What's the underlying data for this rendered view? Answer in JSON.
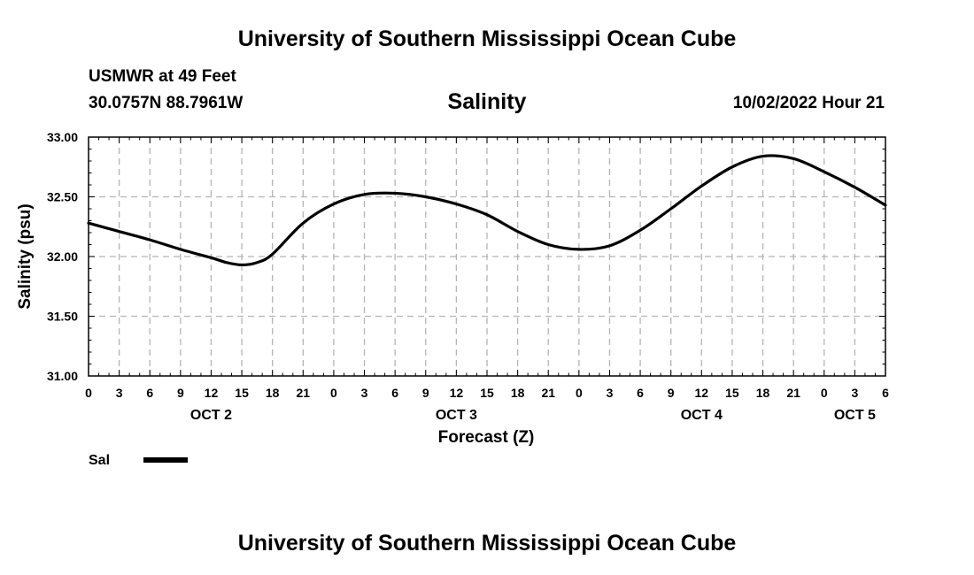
{
  "header": {
    "title": "University of Southern Mississippi Ocean Cube",
    "station": "USMWR at 49 Feet",
    "coords": "30.0757N  88.7961W",
    "datetime": "10/02/2022 Hour 21"
  },
  "footer": {
    "title": "University of Southern Mississippi Ocean Cube"
  },
  "chart_data": {
    "type": "line",
    "title": "Salinity",
    "xlabel": "Forecast (Z)",
    "ylabel": "Salinity (psu)",
    "ylim": [
      31.0,
      33.0
    ],
    "yticks": [
      "31.00",
      "31.50",
      "32.00",
      "32.50",
      "33.00"
    ],
    "xlim_hours": [
      0,
      78
    ],
    "xtick_labels": [
      "0",
      "3",
      "6",
      "9",
      "12",
      "15",
      "18",
      "21",
      "0",
      "3",
      "6",
      "9",
      "12",
      "15",
      "18",
      "21",
      "0",
      "3",
      "6",
      "9",
      "12",
      "15",
      "18",
      "21",
      "0",
      "3",
      "6"
    ],
    "day_labels": [
      {
        "label": "OCT 2",
        "hour": 12
      },
      {
        "label": "OCT 3",
        "hour": 36
      },
      {
        "label": "OCT 4",
        "hour": 60
      },
      {
        "label": "OCT 5",
        "hour": 75
      }
    ],
    "grid": true,
    "legend": "bottom-left",
    "series": [
      {
        "name": "Sal",
        "color": "#000000",
        "x": [
          0,
          3,
          6,
          9,
          12,
          13.5,
          15,
          16.5,
          18,
          21,
          24,
          27,
          30,
          33,
          36,
          39,
          42,
          45,
          48,
          51,
          54,
          57,
          60,
          63,
          66,
          69,
          72,
          75,
          78
        ],
        "values": [
          32.28,
          32.21,
          32.14,
          32.06,
          31.99,
          31.95,
          31.93,
          31.95,
          32.02,
          32.28,
          32.44,
          32.52,
          32.53,
          32.5,
          32.44,
          32.35,
          32.21,
          32.1,
          32.06,
          32.09,
          32.22,
          32.4,
          32.59,
          32.75,
          32.84,
          32.82,
          32.71,
          32.58,
          32.43
        ]
      }
    ]
  }
}
